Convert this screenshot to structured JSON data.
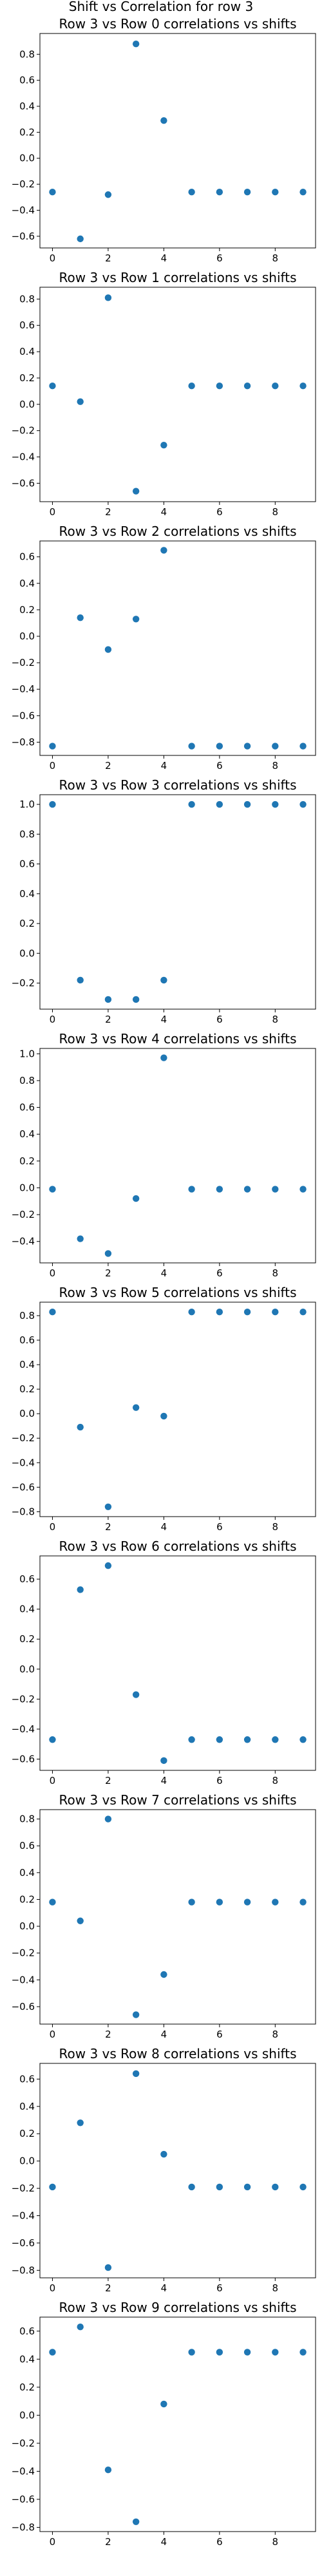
{
  "figure": {
    "suptitle": "Shift vs Correlation for row 3"
  },
  "colors": {
    "marker": "#1f77b4",
    "axis": "#000000",
    "background": "#ffffff"
  },
  "chart_data": [
    {
      "type": "scatter",
      "title": "Row 3 vs Row 0 correlations vs shifts",
      "x": [
        0,
        1,
        2,
        3,
        4,
        5,
        6,
        7,
        8,
        9
      ],
      "y": [
        -0.26,
        -0.62,
        -0.28,
        0.88,
        0.29,
        -0.26,
        -0.26,
        -0.26,
        -0.26,
        -0.26
      ],
      "xlim": [
        -0.45,
        9.45
      ],
      "ylim": [
        -0.69,
        0.96
      ],
      "xticks": [
        0,
        2,
        4,
        6,
        8
      ],
      "yticks": [
        -0.6,
        -0.4,
        -0.2,
        0.0,
        0.2,
        0.4,
        0.6,
        0.8
      ],
      "xtick_labels": [
        "0",
        "2",
        "4",
        "6",
        "8"
      ],
      "ytick_labels": [
        "−0.6",
        "−0.4",
        "−0.2",
        "0.0",
        "0.2",
        "0.4",
        "0.6",
        "0.8"
      ],
      "xlabel": "",
      "ylabel": "",
      "grid": false
    },
    {
      "type": "scatter",
      "title": "Row 3 vs Row 1 correlations vs shifts",
      "x": [
        0,
        1,
        2,
        3,
        4,
        5,
        6,
        7,
        8,
        9
      ],
      "y": [
        0.14,
        0.02,
        0.81,
        -0.66,
        -0.31,
        0.14,
        0.14,
        0.14,
        0.14,
        0.14
      ],
      "xlim": [
        -0.45,
        9.45
      ],
      "ylim": [
        -0.74,
        0.89
      ],
      "xticks": [
        0,
        2,
        4,
        6,
        8
      ],
      "yticks": [
        -0.6,
        -0.4,
        -0.2,
        0.0,
        0.2,
        0.4,
        0.6,
        0.8
      ],
      "xtick_labels": [
        "0",
        "2",
        "4",
        "6",
        "8"
      ],
      "ytick_labels": [
        "−0.6",
        "−0.4",
        "−0.2",
        "0.0",
        "0.2",
        "0.4",
        "0.6",
        "0.8"
      ],
      "xlabel": "",
      "ylabel": "",
      "grid": false
    },
    {
      "type": "scatter",
      "title": "Row 3 vs Row 2 correlations vs shifts",
      "x": [
        0,
        1,
        2,
        3,
        4,
        5,
        6,
        7,
        8,
        9
      ],
      "y": [
        -0.83,
        0.14,
        -0.1,
        0.13,
        0.65,
        -0.83,
        -0.83,
        -0.83,
        -0.83,
        -0.83
      ],
      "xlim": [
        -0.45,
        9.45
      ],
      "ylim": [
        -0.9,
        0.72
      ],
      "xticks": [
        0,
        2,
        4,
        6,
        8
      ],
      "yticks": [
        -0.8,
        -0.6,
        -0.4,
        -0.2,
        0.0,
        0.2,
        0.4,
        0.6
      ],
      "xtick_labels": [
        "0",
        "2",
        "4",
        "6",
        "8"
      ],
      "ytick_labels": [
        "−0.8",
        "−0.6",
        "−0.4",
        "−0.2",
        "0.0",
        "0.2",
        "0.4",
        "0.6"
      ],
      "xlabel": "",
      "ylabel": "",
      "grid": false
    },
    {
      "type": "scatter",
      "title": "Row 3 vs Row 3 correlations vs shifts",
      "x": [
        0,
        1,
        2,
        3,
        4,
        5,
        6,
        7,
        8,
        9
      ],
      "y": [
        1.0,
        -0.18,
        -0.31,
        -0.31,
        -0.18,
        1.0,
        1.0,
        1.0,
        1.0,
        1.0
      ],
      "xlim": [
        -0.45,
        9.45
      ],
      "ylim": [
        -0.375,
        1.065
      ],
      "xticks": [
        0,
        2,
        4,
        6,
        8
      ],
      "yticks": [
        -0.2,
        0.0,
        0.2,
        0.4,
        0.6,
        0.8,
        1.0
      ],
      "xtick_labels": [
        "0",
        "2",
        "4",
        "6",
        "8"
      ],
      "ytick_labels": [
        "−0.2",
        "0.0",
        "0.2",
        "0.4",
        "0.6",
        "0.8",
        "1.0"
      ],
      "xlabel": "",
      "ylabel": "",
      "grid": false
    },
    {
      "type": "scatter",
      "title": "Row 3 vs Row 4 correlations vs shifts",
      "x": [
        0,
        1,
        2,
        3,
        4,
        5,
        6,
        7,
        8,
        9
      ],
      "y": [
        -0.01,
        -0.38,
        -0.49,
        -0.08,
        0.97,
        -0.01,
        -0.01,
        -0.01,
        -0.01,
        -0.01
      ],
      "xlim": [
        -0.45,
        9.45
      ],
      "ylim": [
        -0.56,
        1.04
      ],
      "xticks": [
        0,
        2,
        4,
        6,
        8
      ],
      "yticks": [
        -0.4,
        -0.2,
        0.0,
        0.2,
        0.4,
        0.6,
        0.8,
        1.0
      ],
      "xtick_labels": [
        "0",
        "2",
        "4",
        "6",
        "8"
      ],
      "ytick_labels": [
        "−0.4",
        "−0.2",
        "0.0",
        "0.2",
        "0.4",
        "0.6",
        "0.8",
        "1.0"
      ],
      "xlabel": "",
      "ylabel": "",
      "grid": false
    },
    {
      "type": "scatter",
      "title": "Row 3 vs Row 5 correlations vs shifts",
      "x": [
        0,
        1,
        2,
        3,
        4,
        5,
        6,
        7,
        8,
        9
      ],
      "y": [
        0.83,
        -0.11,
        -0.76,
        0.05,
        -0.02,
        0.83,
        0.83,
        0.83,
        0.83,
        0.83
      ],
      "xlim": [
        -0.45,
        9.45
      ],
      "ylim": [
        -0.84,
        0.91
      ],
      "xticks": [
        0,
        2,
        4,
        6,
        8
      ],
      "yticks": [
        -0.8,
        -0.6,
        -0.4,
        -0.2,
        0.0,
        0.2,
        0.4,
        0.6,
        0.8
      ],
      "xtick_labels": [
        "0",
        "2",
        "4",
        "6",
        "8"
      ],
      "ytick_labels": [
        "−0.8",
        "−0.6",
        "−0.4",
        "−0.2",
        "0.0",
        "0.2",
        "0.4",
        "0.6",
        "0.8"
      ],
      "xlabel": "",
      "ylabel": "",
      "grid": false
    },
    {
      "type": "scatter",
      "title": "Row 3 vs Row 6 correlations vs shifts",
      "x": [
        0,
        1,
        2,
        3,
        4,
        5,
        6,
        7,
        8,
        9
      ],
      "y": [
        -0.47,
        0.53,
        0.69,
        -0.17,
        -0.61,
        -0.47,
        -0.47,
        -0.47,
        -0.47,
        -0.47
      ],
      "xlim": [
        -0.45,
        9.45
      ],
      "ylim": [
        -0.675,
        0.755
      ],
      "xticks": [
        0,
        2,
        4,
        6,
        8
      ],
      "yticks": [
        -0.6,
        -0.4,
        -0.2,
        0.0,
        0.2,
        0.4,
        0.6
      ],
      "xtick_labels": [
        "0",
        "2",
        "4",
        "6",
        "8"
      ],
      "ytick_labels": [
        "−0.6",
        "−0.4",
        "−0.2",
        "0.0",
        "0.2",
        "0.4",
        "0.6"
      ],
      "xlabel": "",
      "ylabel": "",
      "grid": false
    },
    {
      "type": "scatter",
      "title": "Row 3 vs Row 7 correlations vs shifts",
      "x": [
        0,
        1,
        2,
        3,
        4,
        5,
        6,
        7,
        8,
        9
      ],
      "y": [
        0.18,
        0.04,
        0.8,
        -0.66,
        -0.36,
        0.18,
        0.18,
        0.18,
        0.18,
        0.18
      ],
      "xlim": [
        -0.45,
        9.45
      ],
      "ylim": [
        -0.73,
        0.87
      ],
      "xticks": [
        0,
        2,
        4,
        6,
        8
      ],
      "yticks": [
        -0.6,
        -0.4,
        -0.2,
        0.0,
        0.2,
        0.4,
        0.6,
        0.8
      ],
      "xtick_labels": [
        "0",
        "2",
        "4",
        "6",
        "8"
      ],
      "ytick_labels": [
        "−0.6",
        "−0.4",
        "−0.2",
        "0.0",
        "0.2",
        "0.4",
        "0.6",
        "0.8"
      ],
      "xlabel": "",
      "ylabel": "",
      "grid": false
    },
    {
      "type": "scatter",
      "title": "Row 3 vs Row 8 correlations vs shifts",
      "x": [
        0,
        1,
        2,
        3,
        4,
        5,
        6,
        7,
        8,
        9
      ],
      "y": [
        -0.19,
        0.28,
        -0.78,
        0.64,
        0.05,
        -0.19,
        -0.19,
        -0.19,
        -0.19,
        -0.19
      ],
      "xlim": [
        -0.45,
        9.45
      ],
      "ylim": [
        -0.855,
        0.715
      ],
      "xticks": [
        0,
        2,
        4,
        6,
        8
      ],
      "yticks": [
        -0.8,
        -0.6,
        -0.4,
        -0.2,
        0.0,
        0.2,
        0.4,
        0.6
      ],
      "xtick_labels": [
        "0",
        "2",
        "4",
        "6",
        "8"
      ],
      "ytick_labels": [
        "−0.8",
        "−0.6",
        "−0.4",
        "−0.2",
        "0.0",
        "0.2",
        "0.4",
        "0.6"
      ],
      "xlabel": "",
      "ylabel": "",
      "grid": false
    },
    {
      "type": "scatter",
      "title": "Row 3 vs Row 9 correlations vs shifts",
      "x": [
        0,
        1,
        2,
        3,
        4,
        5,
        6,
        7,
        8,
        9
      ],
      "y": [
        0.45,
        0.63,
        -0.39,
        -0.76,
        0.08,
        0.45,
        0.45,
        0.45,
        0.45,
        0.45
      ],
      "xlim": [
        -0.45,
        9.45
      ],
      "ylim": [
        -0.83,
        0.7
      ],
      "xticks": [
        0,
        2,
        4,
        6,
        8
      ],
      "yticks": [
        -0.8,
        -0.6,
        -0.4,
        -0.2,
        0.0,
        0.2,
        0.4,
        0.6
      ],
      "xtick_labels": [
        "0",
        "2",
        "4",
        "6",
        "8"
      ],
      "ytick_labels": [
        "−0.8",
        "−0.6",
        "−0.4",
        "−0.2",
        "0.0",
        "0.2",
        "0.4",
        "0.6"
      ],
      "xlabel": "",
      "ylabel": "",
      "grid": false
    }
  ]
}
